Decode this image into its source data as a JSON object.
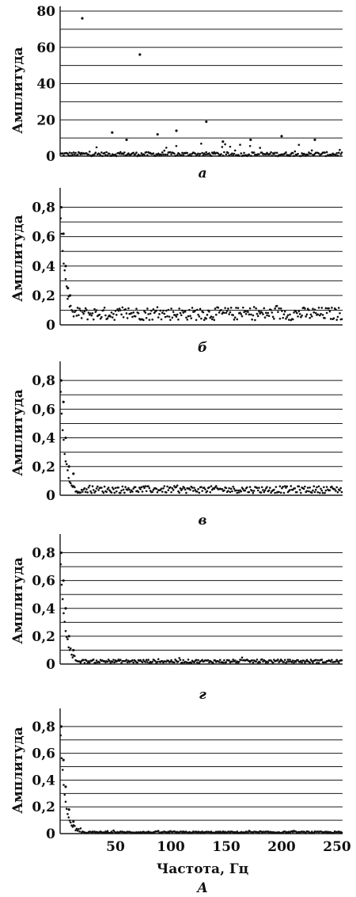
{
  "figure": {
    "xlabel": "Частота, Гц",
    "label": "А",
    "x_tick_labels": [
      "50",
      "100",
      "150",
      "200",
      "250"
    ]
  },
  "chart_data": [
    {
      "type": "scatter",
      "panel": "а",
      "ylabel": "Амплитуда",
      "xlim": [
        0,
        255
      ],
      "ylim": [
        0,
        80
      ],
      "y_ticks": [
        0,
        20,
        40,
        60,
        80
      ],
      "y_tick_labels": [
        "0",
        "20",
        "40",
        "60",
        "80"
      ],
      "grid": true,
      "profile": "sparse",
      "series": [
        {
          "peaks": [
            [
              20,
              76
            ],
            [
              72,
              56
            ],
            [
              132,
              19
            ],
            [
              105,
              14
            ],
            [
              47,
              13
            ],
            [
              88,
              12
            ],
            [
              200,
              11
            ],
            [
              147,
              8
            ],
            [
              230,
              9
            ],
            [
              172,
              9
            ],
            [
              60,
              9
            ]
          ]
        }
      ]
    },
    {
      "type": "scatter",
      "panel": "б",
      "ylabel": "Амплитуда",
      "xlim": [
        0,
        255
      ],
      "ylim": [
        0,
        0.9
      ],
      "y_ticks": [
        0,
        0.2,
        0.4,
        0.6,
        0.8
      ],
      "y_tick_labels": [
        "0",
        "0,2",
        "0,4",
        "0,6",
        "0,8"
      ],
      "grid": true,
      "profile": "flat",
      "series": [
        {
          "peaks": [
            [
              1,
              0.8
            ],
            [
              3,
              0.62
            ],
            [
              5,
              0.4
            ],
            [
              7,
              0.25
            ],
            [
              9,
              0.2
            ]
          ],
          "floor": 0.08
        }
      ]
    },
    {
      "type": "scatter",
      "panel": "в",
      "ylabel": "Амплитуда",
      "xlim": [
        0,
        255
      ],
      "ylim": [
        0,
        0.9
      ],
      "y_ticks": [
        0,
        0.2,
        0.4,
        0.6,
        0.8
      ],
      "y_tick_labels": [
        "0",
        "0,2",
        "0,4",
        "0,6",
        "0,8"
      ],
      "grid": true,
      "profile": "decay",
      "series": [
        {
          "peaks": [
            [
              1,
              0.8
            ],
            [
              3,
              0.65
            ],
            [
              5,
              0.4
            ],
            [
              8,
              0.2
            ],
            [
              12,
              0.15
            ]
          ],
          "floor": 0.04
        }
      ]
    },
    {
      "type": "scatter",
      "panel": "г",
      "ylabel": "Амплитуда",
      "xlim": [
        0,
        255
      ],
      "ylim": [
        0,
        0.9
      ],
      "y_ticks": [
        0,
        0.2,
        0.4,
        0.6,
        0.8
      ],
      "y_tick_labels": [
        "0",
        "0,2",
        "0,4",
        "0,6",
        "0,8"
      ],
      "grid": true,
      "profile": "decay",
      "series": [
        {
          "peaks": [
            [
              1,
              0.8
            ],
            [
              3,
              0.6
            ],
            [
              5,
              0.4
            ],
            [
              8,
              0.2
            ],
            [
              12,
              0.1
            ]
          ],
          "floor": 0.02
        }
      ]
    },
    {
      "type": "scatter",
      "panel": "",
      "ylabel": "Амплитуда",
      "xlim": [
        0,
        255
      ],
      "ylim": [
        0,
        0.9
      ],
      "y_ticks": [
        0,
        0.2,
        0.4,
        0.6,
        0.8
      ],
      "y_tick_labels": [
        "0",
        "0,2",
        "0,4",
        "0,6",
        "0,8"
      ],
      "grid": true,
      "profile": "decay",
      "series": [
        {
          "peaks": [
            [
              1,
              0.8
            ],
            [
              3,
              0.55
            ],
            [
              5,
              0.35
            ],
            [
              8,
              0.18
            ],
            [
              12,
              0.09
            ]
          ],
          "floor": 0.01
        }
      ]
    }
  ]
}
